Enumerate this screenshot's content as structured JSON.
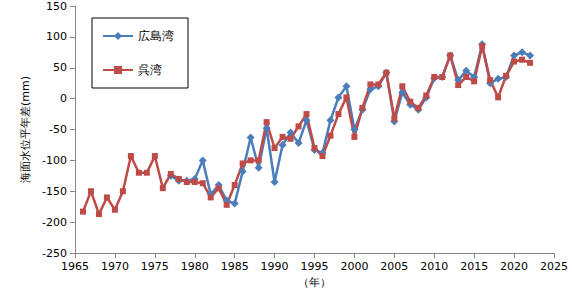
{
  "chart_data": {
    "type": "line",
    "y_label": "海面水位平年差(mm)",
    "x_label": "（年）",
    "x": [
      1966,
      1967,
      1968,
      1969,
      1970,
      1971,
      1972,
      1973,
      1974,
      1975,
      1976,
      1977,
      1978,
      1979,
      1980,
      1981,
      1982,
      1983,
      1984,
      1985,
      1986,
      1987,
      1988,
      1989,
      1990,
      1991,
      1992,
      1993,
      1994,
      1995,
      1996,
      1997,
      1998,
      1999,
      2000,
      2001,
      2002,
      2003,
      2004,
      2005,
      2006,
      2007,
      2008,
      2009,
      2010,
      2011,
      2012,
      2013,
      2014,
      2015,
      2016,
      2017,
      2018,
      2019,
      2020,
      2021,
      2022
    ],
    "series": [
      {
        "name": "広島湾",
        "color": "#4a7ebb",
        "marker": "diamond",
        "values": [
          null,
          null,
          null,
          null,
          null,
          null,
          null,
          null,
          null,
          null,
          null,
          -125,
          -133,
          -133,
          -130,
          -100,
          -155,
          -140,
          -165,
          -170,
          -118,
          -63,
          -112,
          -48,
          -135,
          -75,
          -55,
          -72,
          -35,
          -83,
          -88,
          -35,
          2,
          20,
          -50,
          -18,
          15,
          20,
          42,
          -37,
          10,
          -10,
          -18,
          2,
          33,
          35,
          70,
          30,
          45,
          35,
          88,
          25,
          32,
          35,
          70,
          75,
          70
        ]
      },
      {
        "name": "呉湾",
        "color": "#be4b48",
        "marker": "square",
        "values": [
          -183,
          -150,
          -187,
          -160,
          -180,
          -150,
          -93,
          -120,
          -120,
          -93,
          -145,
          -122,
          -130,
          -135,
          -135,
          -137,
          -160,
          -145,
          -172,
          -140,
          -105,
          -100,
          -100,
          -38,
          -80,
          -62,
          -65,
          -45,
          -25,
          -80,
          -93,
          -60,
          -25,
          2,
          -62,
          -15,
          23,
          23,
          42,
          -32,
          20,
          -5,
          -15,
          5,
          35,
          35,
          70,
          22,
          35,
          28,
          85,
          30,
          2,
          37,
          60,
          63,
          58
        ]
      }
    ],
    "xlim": [
      1965,
      2025
    ],
    "xticks": [
      1965,
      1970,
      1975,
      1980,
      1985,
      1990,
      1995,
      2000,
      2005,
      2010,
      2015,
      2020,
      2025
    ],
    "ylim": [
      -250,
      150
    ],
    "yticks": [
      -250,
      -200,
      -150,
      -100,
      -50,
      0,
      50,
      100,
      150
    ],
    "grid": false,
    "legend": "upper left"
  }
}
